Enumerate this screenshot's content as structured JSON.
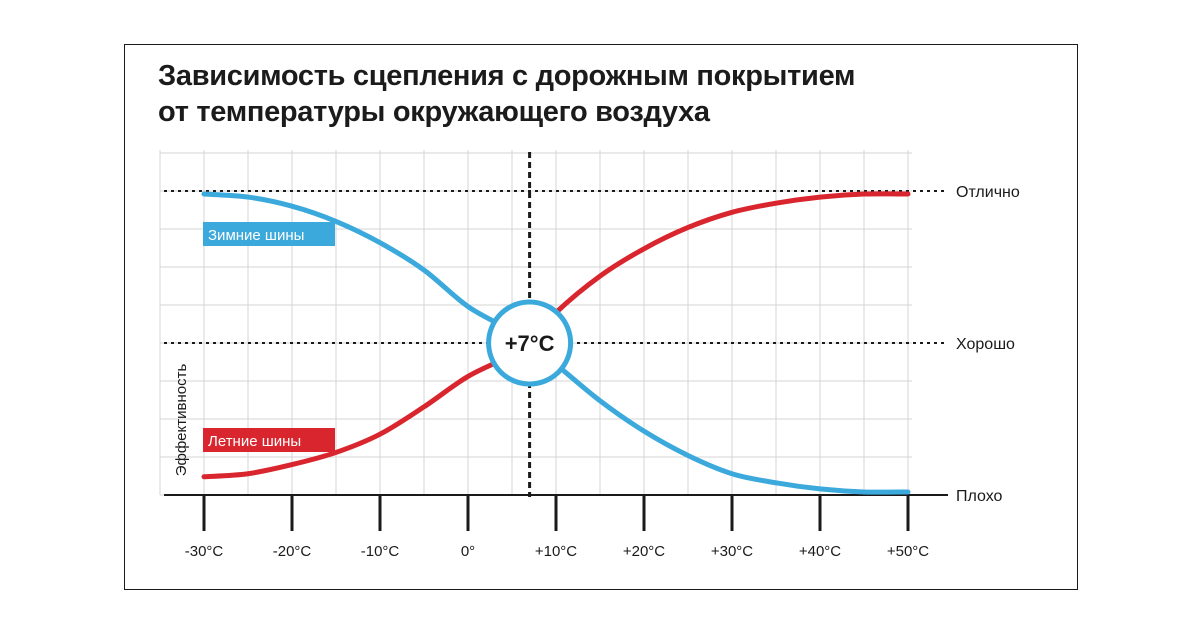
{
  "chart_data": {
    "type": "line",
    "title_lines": [
      "Зависимость сцепления с дорожным покрытием",
      "от температуры окружающего воздуха"
    ],
    "xlabel": "",
    "ylabel": "Эффективность",
    "x_ticks": [
      {
        "value": -30,
        "label": "-30°C"
      },
      {
        "value": -20,
        "label": "-20°C"
      },
      {
        "value": -10,
        "label": "-10°C"
      },
      {
        "value": 0,
        "label": "0°"
      },
      {
        "value": 10,
        "label": "+10°C"
      },
      {
        "value": 20,
        "label": "+20°C"
      },
      {
        "value": 30,
        "label": "+30°C"
      },
      {
        "value": 40,
        "label": "+40°C"
      },
      {
        "value": 50,
        "label": "+50°C"
      }
    ],
    "xlim": [
      -30,
      50
    ],
    "ylim": [
      0,
      1
    ],
    "levels": [
      {
        "label": "Отлично",
        "value": 1
      },
      {
        "label": "Хорошо",
        "value": 0.5
      },
      {
        "label": "Плохо",
        "value": 0
      }
    ],
    "grid": true,
    "crossover": {
      "x": 7,
      "label": "+7°C"
    },
    "series": [
      {
        "name": "Зимние шины",
        "color": "#3ba9dc",
        "x": [
          -30,
          -25,
          -20,
          -15,
          -10,
          -5,
          0,
          5,
          7,
          10,
          15,
          20,
          25,
          30,
          35,
          40,
          45,
          50
        ],
        "y": [
          0.99,
          0.98,
          0.95,
          0.9,
          0.83,
          0.74,
          0.62,
          0.54,
          0.5,
          0.43,
          0.31,
          0.21,
          0.13,
          0.07,
          0.04,
          0.02,
          0.01,
          0.01
        ]
      },
      {
        "name": "Летние шины",
        "color": "#d9262e",
        "x": [
          -30,
          -25,
          -20,
          -15,
          -10,
          -5,
          0,
          5,
          7,
          10,
          15,
          20,
          25,
          30,
          35,
          40,
          45,
          50
        ],
        "y": [
          0.06,
          0.07,
          0.1,
          0.14,
          0.2,
          0.29,
          0.39,
          0.46,
          0.5,
          0.6,
          0.72,
          0.81,
          0.88,
          0.93,
          0.96,
          0.98,
          0.99,
          0.99
        ]
      }
    ]
  }
}
